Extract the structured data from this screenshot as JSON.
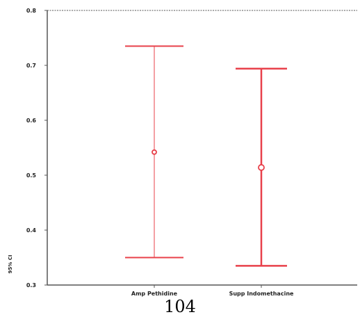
{
  "chart_data": {
    "type": "error_bar",
    "ylabel": "95% CI",
    "ylim": [
      0.3,
      0.8
    ],
    "yticks": [
      "0.3",
      "0.4",
      "0.5",
      "0.6",
      "0.7",
      "0.8"
    ],
    "categories": [
      "Amp Pethidine",
      "Supp Indomethacine"
    ],
    "series": [
      {
        "values": [
          {
            "mean": 0.542,
            "lower": 0.35,
            "upper": 0.735
          },
          {
            "mean": 0.514,
            "lower": 0.335,
            "upper": 0.694
          }
        ]
      }
    ],
    "grid": false,
    "legend": "none",
    "colors": {
      "marks": "#e8404a",
      "axis": "#555555"
    }
  },
  "footer": {
    "page_number": "104"
  }
}
